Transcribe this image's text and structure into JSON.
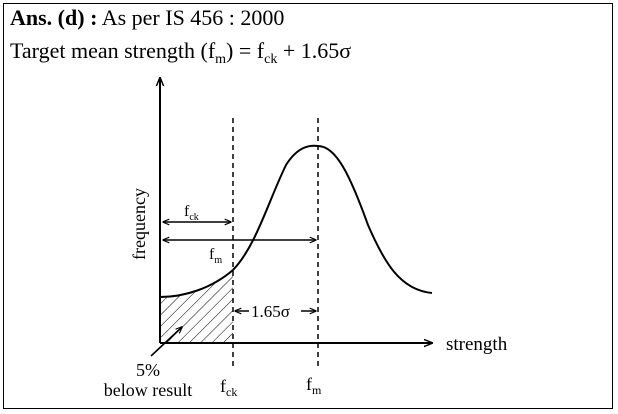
{
  "header": {
    "ans_label": "Ans. (d) :",
    "ans_text": "As per IS 456 : 2000",
    "formula_prefix": "Target mean strength (f",
    "formula_sub_m": "m",
    "formula_mid": ")  = f",
    "formula_sub_ck": "ck",
    "formula_suffix": " + 1.65σ"
  },
  "diagram": {
    "y_axis_label": "frequency",
    "x_axis_label": "strength",
    "fck_arrow_label": "f",
    "fck_arrow_sub": "ck",
    "fm_arrow_label": "f",
    "fm_arrow_sub": "m",
    "sigma_label": "1.65σ",
    "percent_label": "5%",
    "below_label": "below result",
    "tick_fck": "f",
    "tick_fck_sub": "ck",
    "tick_fm": "f",
    "tick_fm_sub": "m"
  }
}
